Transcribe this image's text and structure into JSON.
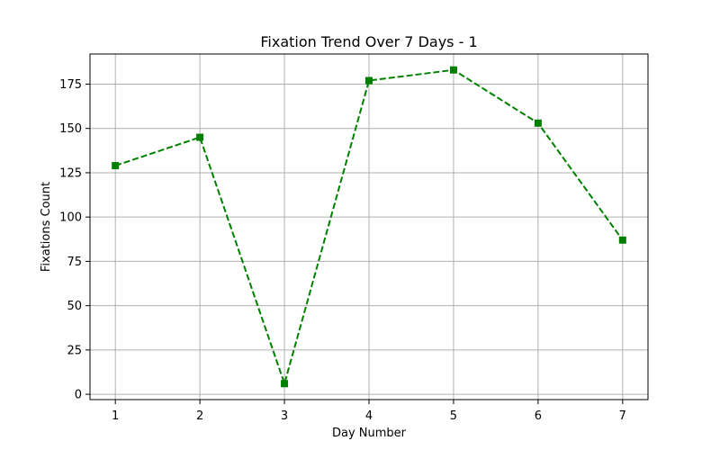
{
  "chart_data": {
    "type": "line",
    "title": "Fixation Trend Over 7 Days - 1",
    "xlabel": "Day Number",
    "ylabel": "Fixations Count",
    "x": [
      1,
      2,
      3,
      4,
      5,
      6,
      7
    ],
    "series": [
      {
        "values": [
          129,
          145,
          6,
          177,
          183,
          153,
          87
        ],
        "color": "#008000",
        "line_style": "dashed",
        "marker": "square"
      }
    ],
    "xlim": [
      0.7,
      7.3
    ],
    "ylim": [
      -3,
      192
    ],
    "x_ticks": [
      1,
      2,
      3,
      4,
      5,
      6,
      7
    ],
    "y_ticks": [
      0,
      25,
      50,
      75,
      100,
      125,
      150,
      175
    ],
    "grid": true,
    "legend": "none"
  }
}
